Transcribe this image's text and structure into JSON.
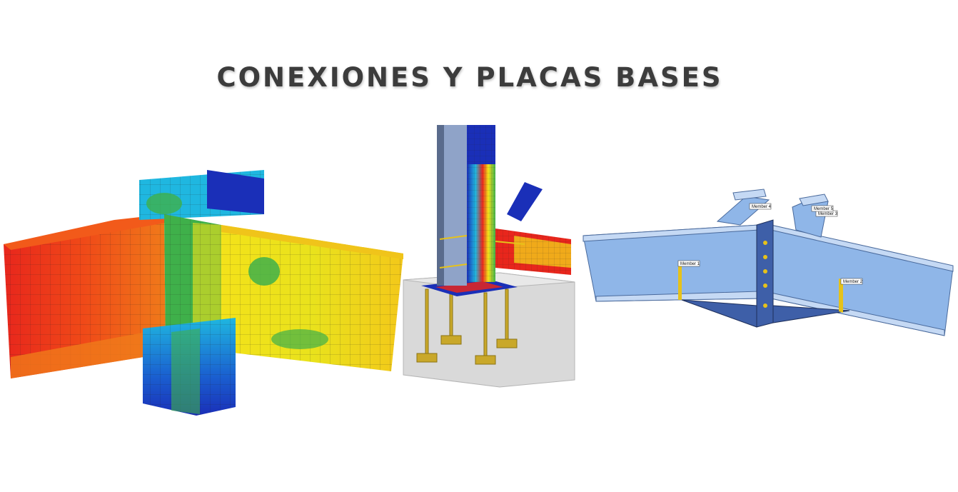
{
  "title": "CONEXIONES Y PLACAS BASES",
  "figures": [
    {
      "icon": "fea-beam-column-stress-contour-icon"
    },
    {
      "icon": "column-base-plate-anchor-bolts-icon"
    },
    {
      "icon": "bolted-beam-connection-model-icon",
      "labels": [
        "Member 1",
        "Member 2",
        "Member 3",
        "Member 4",
        "Member 5"
      ]
    }
  ],
  "colors": {
    "title": "#3c3c3c",
    "stress_red": "#e8261c",
    "stress_orange": "#f07a1a",
    "stress_yellow": "#f3e21a",
    "stress_green": "#3fb04a",
    "stress_cyan": "#1fb7e0",
    "stress_blue": "#1a2fb8",
    "steel_blue": "#8fb6e8",
    "weld_yellow": "#e6c21a",
    "concrete": "#d9d9d9"
  }
}
